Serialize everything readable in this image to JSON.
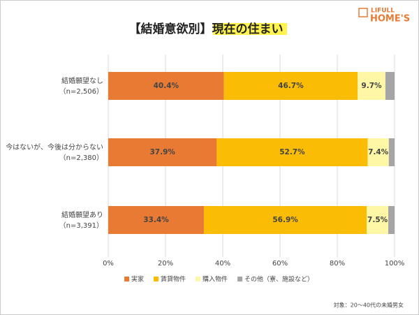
{
  "chart_data": {
    "type": "stacked-barh",
    "title": "【結婚意欲別】現在の住まい",
    "logo": [
      "LIFULL",
      "HOME'S"
    ],
    "note": "対象：20～40代の未婚男女",
    "categories": [
      [
        "結婚願望なし",
        "（n=2,506）"
      ],
      [
        "今はないが、今後は分からない",
        "（n=2,380）"
      ],
      [
        "結婚願望あり",
        "（n=3,391）"
      ]
    ],
    "series": [
      {
        "name": "実家",
        "color": "#e87a34",
        "label_color": "#ffffff",
        "values": [
          40.4,
          37.9,
          33.4
        ],
        "value_labels": [
          "40.4%",
          "37.9%",
          "33.4%"
        ]
      },
      {
        "name": "賃貸物件",
        "color": "#fbbc05",
        "label_color": "#ffffff",
        "values": [
          46.7,
          52.7,
          56.9
        ],
        "value_labels": [
          "46.7%",
          "52.7%",
          "56.9%"
        ]
      },
      {
        "name": "購入物件",
        "color": "#fdf7a6",
        "label_color": "#333333",
        "values": [
          9.7,
          7.4,
          7.5
        ],
        "value_labels": [
          "9.7%",
          "7.4%",
          "7.5%"
        ]
      },
      {
        "name": "その他（寮、施設など）",
        "color": "#a5a5a5",
        "values": [
          3.2,
          2.0,
          2.2
        ]
      }
    ],
    "xlim": [
      0,
      100
    ],
    "xticks": [
      {
        "value": 0,
        "label": "0%"
      },
      {
        "value": 20,
        "label": "20%"
      },
      {
        "value": 40,
        "label": "40%"
      },
      {
        "value": 60,
        "label": "60%"
      },
      {
        "value": 80,
        "label": "80%"
      },
      {
        "value": 100,
        "label": "100%"
      }
    ],
    "grid": true
  }
}
